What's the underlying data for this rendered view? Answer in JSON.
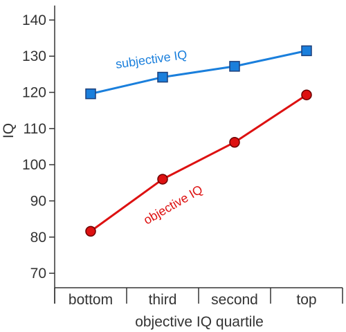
{
  "chart_data": {
    "type": "line",
    "categories": [
      "bottom",
      "third",
      "second",
      "top"
    ],
    "xlabel": "objective IQ quartile",
    "ylabel": "IQ",
    "ylim": [
      66,
      144
    ],
    "yticks": [
      70,
      80,
      90,
      100,
      110,
      120,
      130,
      140
    ],
    "grid": false,
    "series": [
      {
        "name": "subjective IQ",
        "values": [
          119.6,
          124.2,
          127.2,
          131.5
        ],
        "color": "#1a7fdc",
        "marker": "square"
      },
      {
        "name": "objective IQ",
        "values": [
          81.6,
          96.0,
          106.2,
          119.3
        ],
        "color": "#dd1111",
        "marker": "circle"
      }
    ]
  }
}
